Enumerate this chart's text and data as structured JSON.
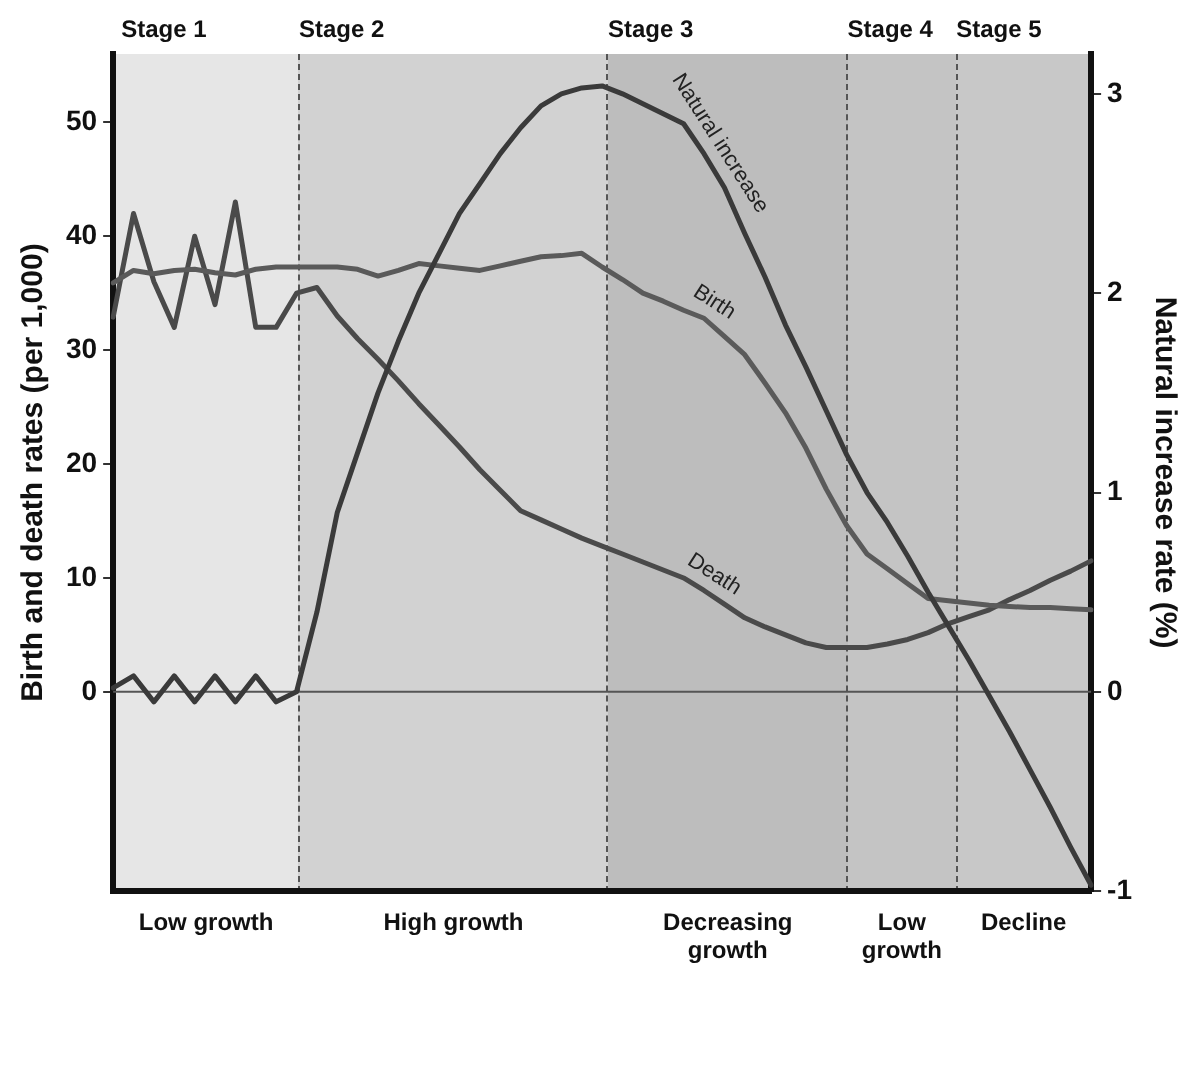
{
  "chart_data": {
    "type": "line",
    "ylabel": "Birth and death rates (per 1,000)",
    "y2label": "Natural increase rate (%)",
    "categories": [
      null,
      null,
      null,
      null,
      null,
      null,
      null,
      null,
      null,
      null,
      null,
      null,
      null,
      null,
      null,
      null,
      null,
      null,
      null,
      null,
      null,
      null,
      null,
      null,
      null,
      null,
      null,
      null,
      null,
      null,
      null,
      null,
      null,
      null,
      null,
      null,
      null,
      null,
      null,
      null,
      null,
      null,
      null,
      null,
      null,
      null,
      null,
      null,
      null
    ],
    "ylim": [
      -17.5,
      56
    ],
    "yticks": [
      0,
      10,
      20,
      30,
      40,
      50
    ],
    "y2lim": [
      -1,
      3.2
    ],
    "y2ticks": [
      -1,
      0,
      1,
      2,
      3
    ],
    "grid": false,
    "legend": false,
    "marker": "none",
    "line_style": "solid",
    "series": [
      {
        "name": "Natural increase",
        "color": "#3a3a3a",
        "axis": "y2",
        "values": [
          0.02,
          0.08,
          -0.05,
          0.08,
          -0.05,
          0.08,
          -0.05,
          0.08,
          -0.05,
          0.0,
          0.4,
          0.9,
          1.2,
          1.5,
          1.76,
          2.0,
          2.2,
          2.4,
          2.55,
          2.7,
          2.83,
          2.94,
          3.0,
          3.03,
          3.04,
          3.0,
          2.95,
          2.9,
          2.85,
          2.7,
          2.53,
          2.3,
          2.08,
          1.84,
          1.63,
          1.41,
          1.19,
          1.0,
          0.85,
          0.68,
          0.5,
          0.33,
          0.16,
          -0.02,
          -0.2,
          -0.39,
          -0.58,
          -0.78,
          -0.97
        ]
      },
      {
        "name": "Birth",
        "color": "#5a5a5a",
        "values": [
          35.9,
          37,
          36.7,
          37,
          37.1,
          36.8,
          36.6,
          37.1,
          37.3,
          37.3,
          37.3,
          37.3,
          37.1,
          36.5,
          37,
          37.6,
          37.4,
          37.2,
          37,
          37.4,
          37.8,
          38.2,
          38.3,
          38.5,
          37.3,
          36.2,
          35,
          34.3,
          33.5,
          32.8,
          31.2,
          29.6,
          27.1,
          24.5,
          21.4,
          17.8,
          14.6,
          12.1,
          10.8,
          9.5,
          8.2,
          8.0,
          7.8,
          7.6,
          7.5,
          7.4,
          7.4,
          7.3,
          7.2
        ]
      },
      {
        "name": "Death",
        "color": "#4a4a4a",
        "values": [
          32.9,
          42,
          36,
          32,
          40,
          34,
          43,
          32,
          32,
          35,
          35.5,
          33,
          31,
          29.2,
          27.3,
          25.3,
          23.4,
          21.5,
          19.5,
          17.7,
          15.9,
          15.1,
          14.3,
          13.5,
          12.8,
          12.1,
          11.4,
          10.7,
          10,
          8.9,
          7.7,
          6.5,
          5.7,
          5.0,
          4.3,
          3.9,
          3.9,
          3.9,
          4.2,
          4.6,
          5.2,
          6.0,
          6.6,
          7.2,
          8.1,
          8.9,
          9.8,
          10.6,
          11.5
        ]
      }
    ],
    "ref_lines": [
      {
        "axis": "y",
        "value": 0,
        "color": "#555555"
      }
    ],
    "annotations": [
      "Stage 1",
      "Stage 2",
      "Stage 3",
      "Stage 4",
      "Stage 5",
      "Low growth",
      "High growth",
      "Decreasing growth",
      "Low growth",
      "Decline"
    ]
  }
}
